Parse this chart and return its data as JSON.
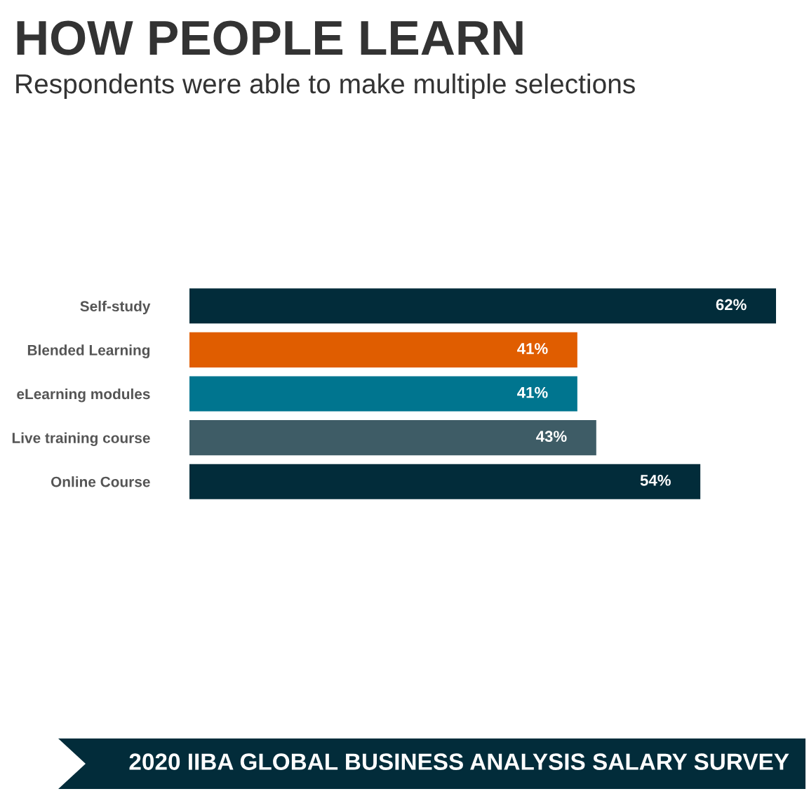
{
  "chart_data": {
    "type": "bar",
    "orientation": "horizontal",
    "title": "HOW PEOPLE LEARN",
    "subtitle": "Respondents were able to make multiple selections",
    "categories": [
      "Self-study",
      "Blended Learning",
      "eLearning modules",
      "Live training course",
      "Online Course"
    ],
    "values": [
      62,
      41,
      41,
      43,
      54
    ],
    "colors": [
      "#022c3a",
      "#e05d00",
      "#00758f",
      "#3e5c66",
      "#022c3a"
    ],
    "value_labels": [
      "62%",
      "41%",
      "41%",
      "43%",
      "54%"
    ],
    "annotations": [
      "2020 IIBA GLOBAL BUSINESS ANALYSIS SALARY SURVEY"
    ]
  }
}
